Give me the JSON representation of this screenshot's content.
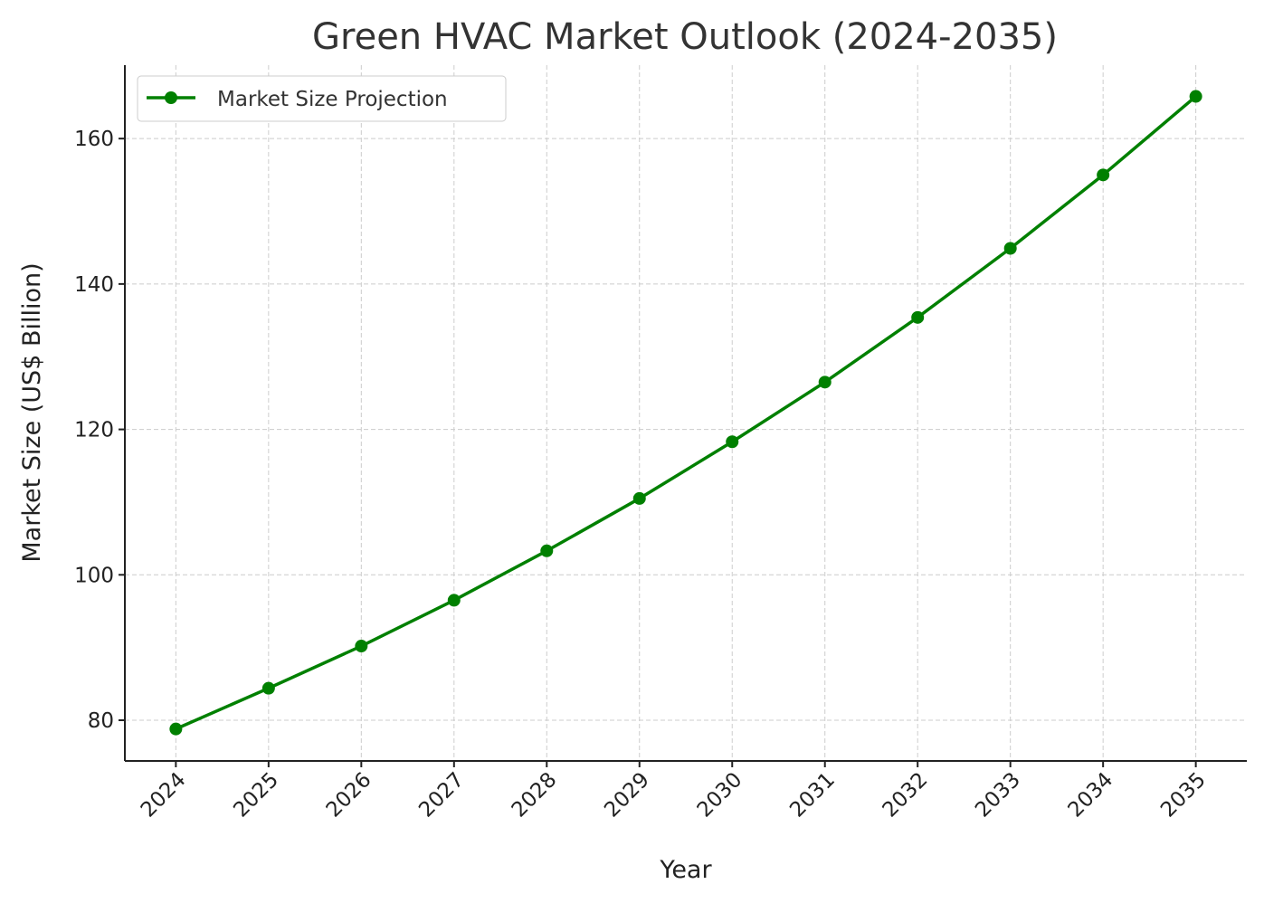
{
  "chart_data": {
    "type": "line",
    "title": "Green HVAC Market Outlook (2024-2035)",
    "xlabel": "Year",
    "ylabel": "Market Size (US$ Billion)",
    "x": [
      2024,
      2025,
      2026,
      2027,
      2028,
      2029,
      2030,
      2031,
      2032,
      2033,
      2034,
      2035
    ],
    "xtick_labels": [
      "2024",
      "2025",
      "2026",
      "2027",
      "2028",
      "2029",
      "2030",
      "2031",
      "2032",
      "2033",
      "2034",
      "2035"
    ],
    "series": [
      {
        "name": "Market Size Projection",
        "color": "#008000",
        "marker": "circle",
        "values": [
          78.8,
          84.4,
          90.2,
          96.5,
          103.3,
          110.5,
          118.3,
          126.5,
          135.4,
          144.9,
          155.0,
          165.8
        ]
      }
    ],
    "yticks": [
      80,
      100,
      120,
      140,
      160
    ],
    "ylim": [
      74.4,
      170.1
    ],
    "xlim": [
      2023.45,
      2035.55
    ],
    "grid": true,
    "legend_position": "top-left"
  }
}
